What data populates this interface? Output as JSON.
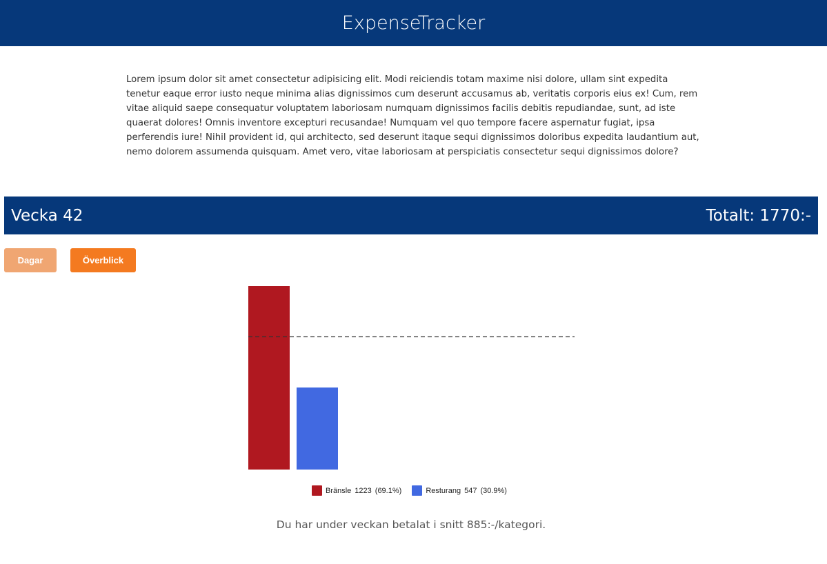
{
  "header": {
    "title": "ExpenseTracker"
  },
  "intro": {
    "text": "Lorem ipsum dolor sit amet consectetur adipisicing elit. Modi reiciendis totam maxime nisi dolore, ullam sint expedita tenetur eaque error iusto neque minima alias dignissimos cum deserunt accusamus ab, veritatis corporis eius ex! Cum, rem vitae aliquid saepe consequatur voluptatem laboriosam numquam dignissimos facilis debitis repudiandae, sunt, ad iste quaerat dolores! Omnis inventore excepturi recusandae! Numquam vel quo tempore facere aspernatur fugiat, ipsa perferendis iure! Nihil provident id, qui architecto, sed deserunt itaque sequi dignissimos doloribus expedita laudantium aut, nemo dolorem assumenda quisquam. Amet vero, vitae laboriosam at perspiciatis consectetur sequi dignissimos dolore?"
  },
  "week": {
    "label": "Vecka 42",
    "total": "Totalt: 1770:-"
  },
  "buttons": {
    "days": "Dagar",
    "overview": "Överblick"
  },
  "colors": {
    "primary": "#06387a",
    "button_days": "#f0a672",
    "button_overview": "#f47a20",
    "fuel": "#b01820",
    "restaurant": "#4169e1"
  },
  "chart_data": {
    "type": "bar",
    "categories": [
      "Bränsle",
      "Resturang"
    ],
    "values": [
      1223,
      547
    ],
    "percentages": [
      "(69.1%)",
      "(30.9%)"
    ],
    "average_line": 885,
    "ylim": [
      0,
      1223
    ],
    "legend": [
      {
        "label": "Bränsle",
        "value": "1223",
        "percent": "(69.1%)"
      },
      {
        "label": "Resturang",
        "value": "547",
        "percent": "(30.9%)"
      }
    ]
  },
  "summary": {
    "text": "Du har under veckan betalat i snitt 885:-/kategori."
  }
}
